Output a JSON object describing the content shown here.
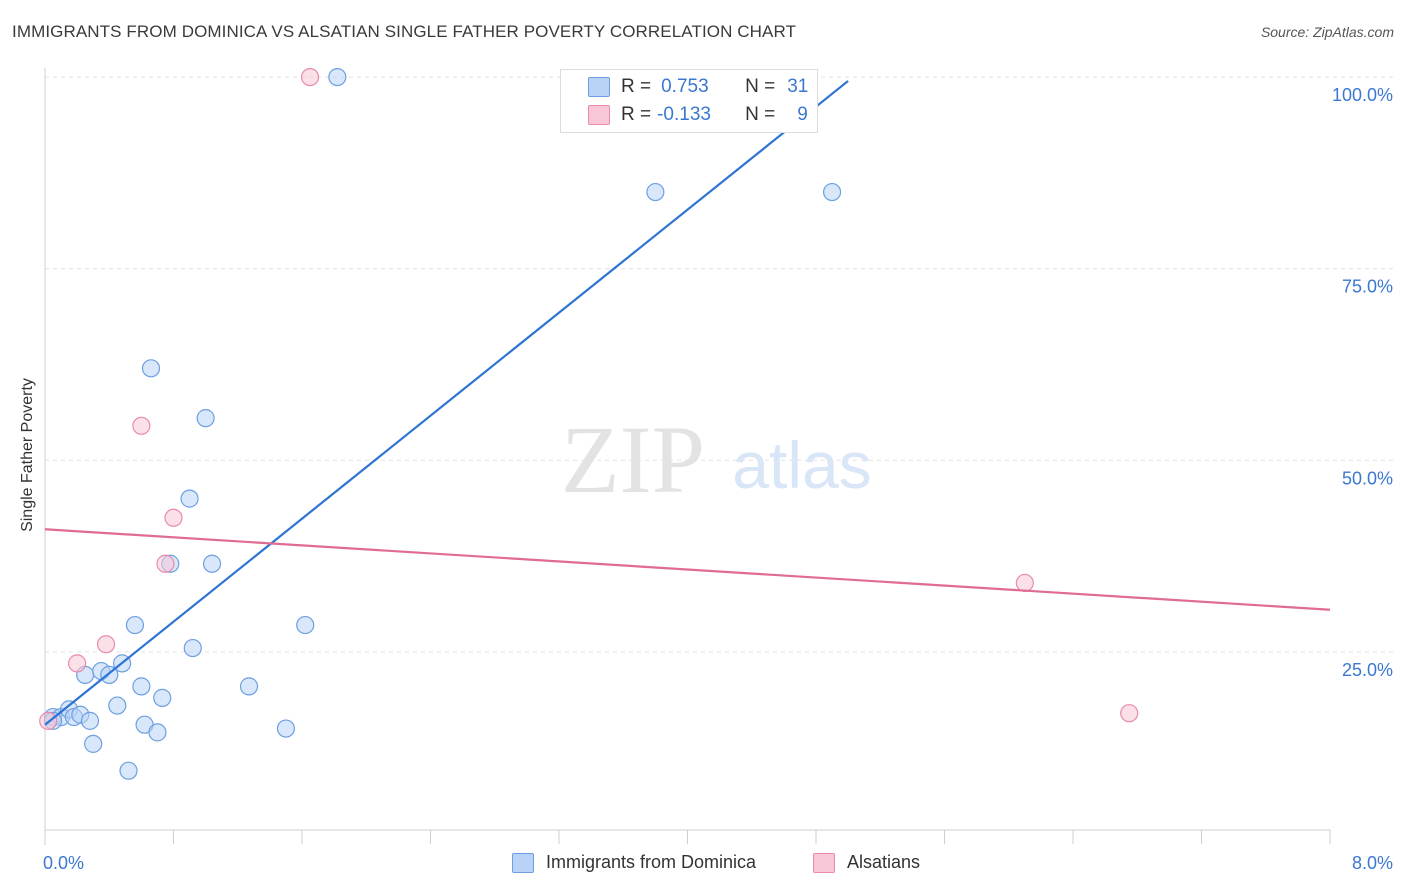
{
  "chart_data": {
    "type": "scatter",
    "title": "IMMIGRANTS FROM DOMINICA VS ALSATIAN SINGLE FATHER POVERTY CORRELATION CHART",
    "source": "Source: ZipAtlas.com",
    "xlabel": "",
    "ylabel": "Single Father Poverty",
    "xlim": [
      0,
      8
    ],
    "ylim": [
      0,
      100
    ],
    "x_tick_labels": {
      "left": "0.0%",
      "right": "8.0%"
    },
    "y_tick_labels": [
      "100.0%",
      "75.0%",
      "50.0%",
      "25.0%"
    ],
    "watermark": {
      "zip": "ZIP",
      "atlas": "atlas"
    },
    "colors": {
      "blue_fill": "#b8d3f5",
      "blue_stroke": "#6e9fe0",
      "blue_line": "#2e74d4",
      "pink_fill": "#f8c6d6",
      "pink_stroke": "#e88aab",
      "pink_line": "#e06b93",
      "accent_text": "#3b78d1"
    },
    "legend": {
      "rows": [
        {
          "r_label": "R =",
          "r_value": "0.753",
          "n_label": "N =",
          "n_value": "31"
        },
        {
          "r_label": "R =",
          "r_value": "-0.133",
          "n_label": "N =",
          "n_value": "9"
        }
      ]
    },
    "series": [
      {
        "name": "Immigrants from Dominica",
        "color": "#6e9fe0",
        "points": [
          [
            0.05,
            16.5
          ],
          [
            0.1,
            16.5
          ],
          [
            0.15,
            17.5
          ],
          [
            0.18,
            16.5
          ],
          [
            0.22,
            16.8
          ],
          [
            0.28,
            16.0
          ],
          [
            0.25,
            22.0
          ],
          [
            0.35,
            22.5
          ],
          [
            0.4,
            22.0
          ],
          [
            0.48,
            23.5
          ],
          [
            0.3,
            13.0
          ],
          [
            0.45,
            18.0
          ],
          [
            0.52,
            9.5
          ],
          [
            0.56,
            28.5
          ],
          [
            0.6,
            20.5
          ],
          [
            0.62,
            15.5
          ],
          [
            0.7,
            14.5
          ],
          [
            0.73,
            19.0
          ],
          [
            0.66,
            62.0
          ],
          [
            0.78,
            36.5
          ],
          [
            0.9,
            45.0
          ],
          [
            0.92,
            25.5
          ],
          [
            1.0,
            55.5
          ],
          [
            1.04,
            36.5
          ],
          [
            1.27,
            20.5
          ],
          [
            1.5,
            15.0
          ],
          [
            1.62,
            28.5
          ],
          [
            1.82,
            100.0
          ],
          [
            3.8,
            85.0
          ],
          [
            4.9,
            85.0
          ],
          [
            0.05,
            16.0
          ]
        ],
        "trend": {
          "x": [
            0.0,
            5.0
          ],
          "y": [
            15.5,
            99.5
          ]
        }
      },
      {
        "name": "Alsatians",
        "color": "#e88aab",
        "points": [
          [
            0.02,
            16.0
          ],
          [
            0.2,
            23.5
          ],
          [
            0.38,
            26.0
          ],
          [
            0.6,
            54.5
          ],
          [
            0.75,
            36.5
          ],
          [
            0.8,
            42.5
          ],
          [
            1.65,
            100.0
          ],
          [
            6.1,
            34.0
          ],
          [
            6.75,
            17.0
          ]
        ],
        "trend": {
          "x": [
            0.0,
            8.0
          ],
          "y": [
            41.0,
            30.5
          ]
        }
      }
    ]
  }
}
